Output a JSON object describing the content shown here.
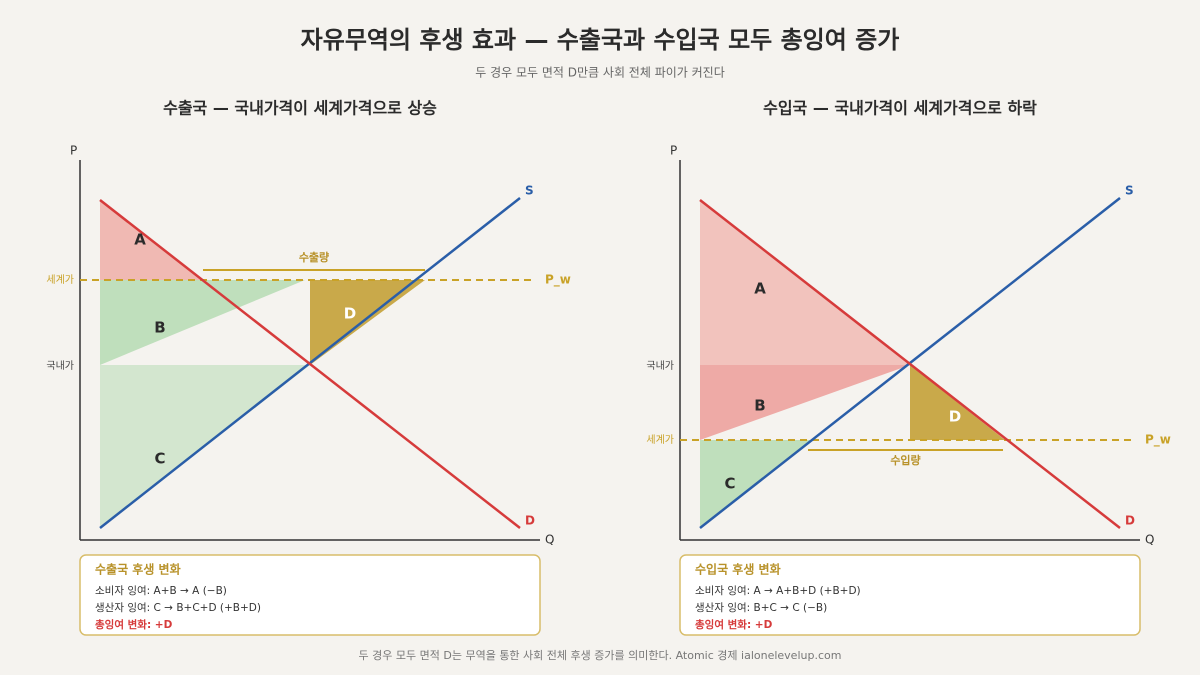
{
  "header": {
    "title": "자유무역의 후생 효과 — 수출국과 수입국 모두 총잉여 증가",
    "subtitle": "두 경우 모두 면적 D만큼 사회 전체 파이가 커진다"
  },
  "panels": [
    {
      "title": "수출국 — 국내가격이 세계가격으로 상승",
      "axis_y": "P",
      "axis_x": "Q",
      "supply": "S",
      "demand": "D",
      "world_price": "P_w",
      "world_price_tick": "세계가",
      "domestic_price_tick": "국내가",
      "areas": [
        "A",
        "B",
        "C",
        "D"
      ],
      "quantity_label": "수출량",
      "box": {
        "title": "수출국 후생 변화",
        "lines": [
          "소비자 잉여: A+B → A (−B)",
          "생산자 잉여: C → B+C+D (+B+D)",
          "총잉여 변화: +D"
        ]
      }
    },
    {
      "title": "수입국 — 국내가격이 세계가격으로 하락",
      "axis_y": "P",
      "axis_x": "Q",
      "supply": "S",
      "demand": "D",
      "world_price": "P_w",
      "world_price_tick": "세계가",
      "domestic_price_tick": "국내가",
      "areas": [
        "A",
        "B",
        "C",
        "D"
      ],
      "quantity_label": "수입량",
      "box": {
        "title": "수입국 후생 변화",
        "lines": [
          "소비자 잉여: A → A+B+D (+B+D)",
          "생산자 잉여: B+C → C (−B)",
          "총잉여 변화: +D"
        ]
      }
    }
  ],
  "footer": "두 경우 모두 면적 D는 무역을 통한 사회 전체 후생 증가를 의미한다. Atomic 경제 ialonelevelup.com"
}
